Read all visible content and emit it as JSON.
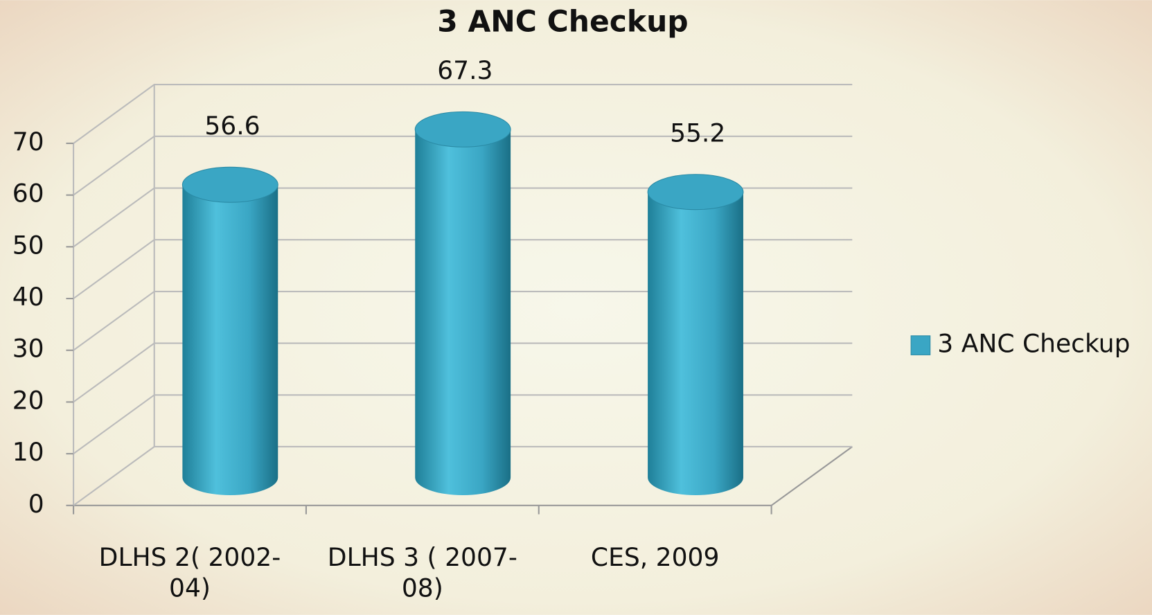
{
  "chart_data": {
    "type": "bar",
    "title": "3 ANC Checkup",
    "categories": [
      "DLHS 2( 2002-04)",
      "DLHS 3 ( 2007-08)",
      "CES, 2009"
    ],
    "series": [
      {
        "name": "3 ANC Checkup",
        "color": "#3aa6c4",
        "values": [
          56.6,
          67.3,
          55.2
        ]
      }
    ],
    "ylim": [
      0,
      70
    ],
    "yticks": [
      0,
      10,
      20,
      30,
      40,
      50,
      60,
      70
    ],
    "grid": true,
    "legend": "right"
  }
}
